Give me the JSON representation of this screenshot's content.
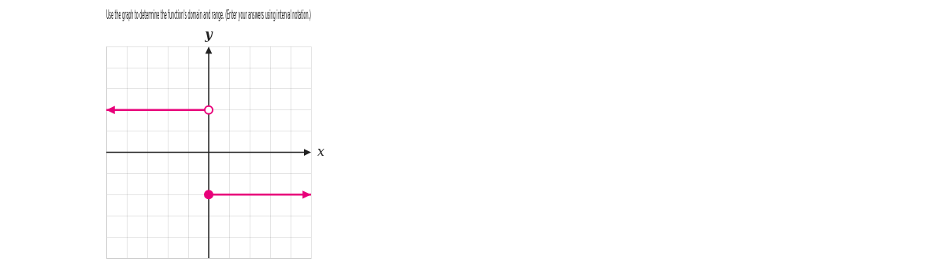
{
  "chart_data": {
    "type": "line",
    "title": "Use the graph to determine the function's domain and range. (Enter your answers using interval notation.)",
    "x_label": "x",
    "y_label": "y",
    "xlim": [
      -5,
      5
    ],
    "ylim": [
      -5,
      5
    ],
    "xticks": [
      -5,
      -4,
      -3,
      -2,
      -1,
      0,
      1,
      2,
      3,
      4,
      5
    ],
    "yticks": [
      -5,
      -4,
      -3,
      -2,
      -1,
      0,
      1,
      2,
      3,
      4,
      5
    ],
    "grid": true,
    "tick_labels": false,
    "series": [
      {
        "type": "line",
        "color": "#e8007a",
        "line_style": "arrow",
        "x": [
          0,
          -5
        ],
        "values": [
          2,
          2
        ]
      },
      {
        "type": "line",
        "color": "#e8007a",
        "line_style": "arrow",
        "x": [
          0,
          5
        ],
        "values": [
          -2,
          -2
        ]
      },
      {
        "type": "scatter",
        "color": "#e8007a",
        "marker": "open_circle",
        "x": [
          0
        ],
        "values": [
          2
        ]
      },
      {
        "type": "scatter",
        "color": "#e8007a",
        "marker": "filled_circle",
        "x": [
          0
        ],
        "values": [
          -2
        ]
      }
    ]
  }
}
